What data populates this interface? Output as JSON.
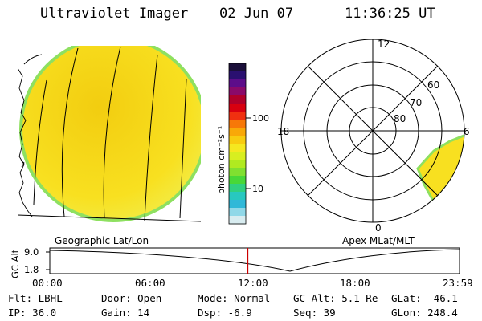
{
  "header": {
    "title": "Ultraviolet Imager",
    "date": "02 Jun 07",
    "time": "11:36:25 UT"
  },
  "colors": {
    "image_fill": "#f8e020",
    "image_core": "#f2cd10",
    "image_rim": "#8ee060",
    "background": "#ffffff",
    "line": "#000000",
    "time_marker": "#cc0000"
  },
  "colorbar": {
    "unit_label": "photon cm⁻²s⁻¹",
    "tick_labels": [
      "100",
      "10"
    ],
    "colors": [
      "#1b0f3a",
      "#2a1070",
      "#5d0d8a",
      "#8a0a6a",
      "#b0002a",
      "#d80010",
      "#f03010",
      "#f77808",
      "#f9a808",
      "#f8cc10",
      "#f5e820",
      "#d8ee20",
      "#b0ea20",
      "#80e030",
      "#48d838",
      "#30d080",
      "#28c8c0",
      "#30b8d8",
      "#90d8e8",
      "#d8ecf0"
    ]
  },
  "geo_panel": {
    "label": "Geographic Lat/Lon"
  },
  "polar_panel": {
    "label": "Apex MLat/MLT",
    "mlt_labels": [
      "12",
      "18",
      "6",
      "0"
    ],
    "mlat_labels": [
      "60",
      "70",
      "80"
    ]
  },
  "altitude_plot": {
    "y_title": "GC Alt",
    "y_ticks": [
      "9.0",
      "1.8"
    ],
    "x_ticks": [
      "00:00",
      "06:00",
      "12:00",
      "18:00",
      "23:59"
    ],
    "current_time_hours": 11.6
  },
  "status": {
    "filter": "Flt: LBHL",
    "ip": "IP: 36.0",
    "door": "Door: Open",
    "gain": "Gain: 14",
    "mode": "Mode: Normal",
    "dsp": "Dsp:    -6.9",
    "gc_alt": "GC Alt: 5.1 Re",
    "seq": "Seq: 39",
    "glat": "GLat: -46.1",
    "glon": "GLon: 248.4"
  }
}
